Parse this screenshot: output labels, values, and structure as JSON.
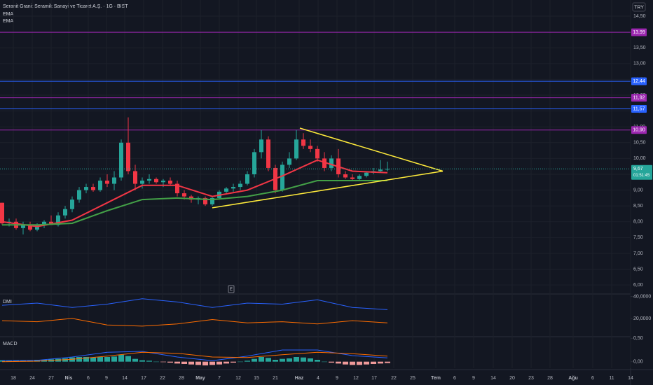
{
  "chart_data": [
    {
      "type": "candlestick",
      "title": "Seranit Granit Seramik Sanayi ve Ticaret A.Ş. · 1G · BIST",
      "currency": "TRY",
      "up_color": "#26a69a",
      "down_color": "#f23645",
      "grid": true,
      "xlim": [
        -0.3,
        89.7
      ],
      "xticks": [
        {
          "value": 1.6,
          "label": "18"
        },
        {
          "value": 4.3,
          "label": "24"
        },
        {
          "value": 7.0,
          "label": "27"
        },
        {
          "value": 9.5,
          "label": "Nis"
        },
        {
          "value": 12.3,
          "label": "6"
        },
        {
          "value": 14.9,
          "label": "9"
        },
        {
          "value": 17.5,
          "label": "14"
        },
        {
          "value": 20.2,
          "label": "17"
        },
        {
          "value": 22.9,
          "label": "22"
        },
        {
          "value": 25.6,
          "label": "28"
        },
        {
          "value": 28.3,
          "label": "May"
        },
        {
          "value": 31.0,
          "label": "7"
        },
        {
          "value": 33.7,
          "label": "12"
        },
        {
          "value": 36.3,
          "label": "15"
        },
        {
          "value": 39.0,
          "label": "21"
        },
        {
          "value": 42.4,
          "label": "Haz"
        },
        {
          "value": 45.1,
          "label": "4"
        },
        {
          "value": 47.8,
          "label": "9"
        },
        {
          "value": 50.5,
          "label": "12"
        },
        {
          "value": 53.1,
          "label": "17"
        },
        {
          "value": 55.9,
          "label": "22"
        },
        {
          "value": 58.6,
          "label": "25"
        },
        {
          "value": 61.9,
          "label": "Tem"
        },
        {
          "value": 64.6,
          "label": "6"
        },
        {
          "value": 67.3,
          "label": "9"
        },
        {
          "value": 70.1,
          "label": "14"
        },
        {
          "value": 72.8,
          "label": "20"
        },
        {
          "value": 75.5,
          "label": "23"
        },
        {
          "value": 78.2,
          "label": "28"
        },
        {
          "value": 81.5,
          "label": "Ağu"
        },
        {
          "value": 84.3,
          "label": "6"
        },
        {
          "value": 87.0,
          "label": "11"
        },
        {
          "value": 89.7,
          "label": "14"
        }
      ],
      "ylim": [
        5.76,
        15.01
      ],
      "yticks": [
        {
          "value": 14.5,
          "label": "14,50"
        },
        {
          "value": 14.0,
          "label": "14,00"
        },
        {
          "value": 13.5,
          "label": "13,50"
        },
        {
          "value": 13.0,
          "label": "13,00"
        },
        {
          "value": 12.5,
          "label": "12,50"
        },
        {
          "value": 12.0,
          "label": "12,00"
        },
        {
          "value": 11.5,
          "label": "11,50"
        },
        {
          "value": 11.0,
          "label": "11,00"
        },
        {
          "value": 10.5,
          "label": "10,50"
        },
        {
          "value": 10.0,
          "label": "10,00"
        },
        {
          "value": 9.5,
          "label": "9,50"
        },
        {
          "value": 9.0,
          "label": "9,00"
        },
        {
          "value": 8.5,
          "label": "8,50"
        },
        {
          "value": 8.0,
          "label": "8,00"
        },
        {
          "value": 7.5,
          "label": "7,50"
        },
        {
          "value": 7.0,
          "label": "7,00"
        },
        {
          "value": 6.5,
          "label": "6,50"
        },
        {
          "value": 6.0,
          "label": "6,00"
        }
      ],
      "candles": [
        [
          8.6,
          8.6,
          7.9,
          7.95
        ],
        [
          7.95,
          8.1,
          7.85,
          8.0
        ],
        [
          8.0,
          8.1,
          7.75,
          7.8
        ],
        [
          7.8,
          8.0,
          7.6,
          7.9
        ],
        [
          7.9,
          8.0,
          7.7,
          7.75
        ],
        [
          7.75,
          7.95,
          7.7,
          7.9
        ],
        [
          7.9,
          8.05,
          7.8,
          8.0
        ],
        [
          8.0,
          8.2,
          7.9,
          7.9
        ],
        [
          7.9,
          8.3,
          7.85,
          8.2
        ],
        [
          8.2,
          8.5,
          8.1,
          8.4
        ],
        [
          8.4,
          8.8,
          8.3,
          8.7
        ],
        [
          8.7,
          9.1,
          8.6,
          9.0
        ],
        [
          9.0,
          9.2,
          8.9,
          9.1
        ],
        [
          9.1,
          9.2,
          8.95,
          9.0
        ],
        [
          9.0,
          9.4,
          8.95,
          9.3
        ],
        [
          9.3,
          9.5,
          9.1,
          9.2
        ],
        [
          9.2,
          9.6,
          9.0,
          9.4
        ],
        [
          9.4,
          10.6,
          9.3,
          10.5
        ],
        [
          10.5,
          11.3,
          9.5,
          9.6
        ],
        [
          9.6,
          9.8,
          9.0,
          9.2
        ],
        [
          9.2,
          9.4,
          9.05,
          9.3
        ],
        [
          9.3,
          9.5,
          9.2,
          9.35
        ],
        [
          9.35,
          9.4,
          9.2,
          9.25
        ],
        [
          9.25,
          9.35,
          9.1,
          9.3
        ],
        [
          9.3,
          9.4,
          9.15,
          9.2
        ],
        [
          9.2,
          9.3,
          8.8,
          8.9
        ],
        [
          8.9,
          9.0,
          8.7,
          8.8
        ],
        [
          8.8,
          8.85,
          8.6,
          8.7
        ],
        [
          8.7,
          8.8,
          8.55,
          8.75
        ],
        [
          8.75,
          8.8,
          8.5,
          8.55
        ],
        [
          8.55,
          8.8,
          8.5,
          8.75
        ],
        [
          8.75,
          9.0,
          8.7,
          8.95
        ],
        [
          8.95,
          9.1,
          8.9,
          9.05
        ],
        [
          9.05,
          9.2,
          8.95,
          9.1
        ],
        [
          9.1,
          9.3,
          9.0,
          9.2
        ],
        [
          9.2,
          9.6,
          9.15,
          9.5
        ],
        [
          9.5,
          10.3,
          9.4,
          10.2
        ],
        [
          10.2,
          10.9,
          10.0,
          10.6
        ],
        [
          10.6,
          10.7,
          9.6,
          9.7
        ],
        [
          9.7,
          9.8,
          8.9,
          9.0
        ],
        [
          9.0,
          9.9,
          8.95,
          9.8
        ],
        [
          9.8,
          10.2,
          9.7,
          10.0
        ],
        [
          10.0,
          10.9,
          9.95,
          10.6
        ],
        [
          10.6,
          10.8,
          10.3,
          10.4
        ],
        [
          10.4,
          10.6,
          10.2,
          10.3
        ],
        [
          10.3,
          10.4,
          9.9,
          10.0
        ],
        [
          10.0,
          10.2,
          9.6,
          9.7
        ],
        [
          9.7,
          10.1,
          9.6,
          10.0
        ],
        [
          10.0,
          10.3,
          9.4,
          9.5
        ],
        [
          9.5,
          9.6,
          9.35,
          9.4
        ],
        [
          9.4,
          9.5,
          9.3,
          9.35
        ],
        [
          9.35,
          9.5,
          9.3,
          9.45
        ],
        [
          9.45,
          9.6,
          9.4,
          9.55
        ],
        [
          9.55,
          9.7,
          9.5,
          9.6
        ],
        [
          9.6,
          9.95,
          9.55,
          9.65
        ],
        [
          9.65,
          9.9,
          9.6,
          9.67
        ]
      ],
      "series": [
        {
          "name": "EMA",
          "color": "#f23645",
          "x": [
            0,
            5,
            10,
            15,
            20,
            25,
            30,
            35,
            40,
            45,
            50,
            55
          ],
          "values": [
            8.0,
            7.85,
            8.05,
            8.6,
            9.15,
            9.15,
            8.8,
            9.0,
            9.45,
            9.95,
            9.6,
            9.55
          ]
        },
        {
          "name": "EMA",
          "color": "#43a047",
          "x": [
            0,
            5,
            10,
            15,
            20,
            25,
            30,
            35,
            40,
            45,
            50,
            55
          ],
          "values": [
            7.9,
            7.9,
            7.95,
            8.35,
            8.7,
            8.75,
            8.7,
            8.8,
            9.0,
            9.3,
            9.3,
            9.3
          ]
        }
      ],
      "levels": [
        {
          "value": 13.99,
          "label": "13,99",
          "color": "#9c27b0"
        },
        {
          "value": 12.44,
          "label": "12,44",
          "color": "#2962ff"
        },
        {
          "value": 11.92,
          "label": "11,92",
          "color": "#9c27b0"
        },
        {
          "value": 11.57,
          "label": "11,57",
          "color": "#2962ff"
        },
        {
          "value": 10.9,
          "label": "10,90",
          "color": "#9c27b0"
        }
      ],
      "trendlines": [
        {
          "x": [
            30,
            62.9
          ],
          "y": [
            8.44,
            9.6
          ],
          "color": "#ffeb3b"
        },
        {
          "x": [
            42.5,
            62.9
          ],
          "y": [
            10.96,
            9.6
          ],
          "color": "#ffeb3b"
        }
      ],
      "events": [
        {
          "x": 32.7,
          "label": "E"
        }
      ],
      "last": {
        "value": 9.67,
        "label": "9,67",
        "countdown": "01:51:45",
        "color": "#26a69a"
      }
    },
    {
      "type": "line",
      "title": "DMI",
      "ylim": [
        4,
        41
      ],
      "yticks": [
        {
          "value": 40,
          "label": "40,0000"
        },
        {
          "value": 20,
          "label": "20,0000"
        }
      ],
      "series": [
        {
          "color": "#2962ff",
          "x": [
            0,
            5,
            10,
            15,
            20,
            25,
            30,
            35,
            40,
            45,
            50,
            55
          ],
          "values": [
            32,
            34,
            30,
            33,
            38,
            35,
            30,
            34,
            33,
            37,
            30,
            28
          ]
        },
        {
          "color": "#ff6d00",
          "x": [
            0,
            5,
            10,
            15,
            20,
            25,
            30,
            35,
            40,
            45,
            50,
            55
          ],
          "values": [
            18,
            17,
            20,
            14,
            13,
            15,
            19,
            16,
            17,
            15,
            18,
            16
          ]
        }
      ]
    },
    {
      "type": "bar",
      "title": "MACD",
      "ylim": [
        -0.14,
        0.52
      ],
      "yticks": [
        {
          "value": 0.5,
          "label": "0,50"
        },
        {
          "value": 0,
          "label": "0,00"
        }
      ],
      "pos_color": "#26a69a",
      "neg_color": "#ef9a9a",
      "values": [
        0.03,
        0.02,
        0.02,
        0.03,
        0.03,
        0.04,
        0.04,
        0.05,
        0.06,
        0.07,
        0.09,
        0.1,
        0.1,
        0.09,
        0.1,
        0.1,
        0.11,
        0.15,
        0.12,
        0.06,
        0.03,
        0.02,
        0.0,
        -0.01,
        -0.02,
        -0.04,
        -0.05,
        -0.06,
        -0.07,
        -0.08,
        -0.07,
        -0.06,
        -0.04,
        -0.02,
        0.0,
        0.02,
        0.06,
        0.1,
        0.08,
        0.04,
        0.06,
        0.07,
        0.1,
        0.09,
        0.07,
        0.04,
        0.0,
        -0.02,
        -0.04,
        -0.06,
        -0.07,
        -0.07,
        -0.06,
        -0.05,
        -0.04,
        -0.03
      ],
      "series": [
        {
          "color": "#2962ff",
          "x": [
            0,
            5,
            10,
            15,
            20,
            25,
            30,
            35,
            40,
            45,
            50,
            55
          ],
          "values": [
            0.02,
            0.03,
            0.1,
            0.2,
            0.22,
            0.1,
            0.02,
            0.12,
            0.25,
            0.25,
            0.13,
            0.08
          ]
        },
        {
          "color": "#ff6d00",
          "x": [
            0,
            5,
            10,
            15,
            20,
            25,
            30,
            35,
            40,
            45,
            50,
            55
          ],
          "values": [
            0.0,
            0.01,
            0.05,
            0.12,
            0.2,
            0.18,
            0.1,
            0.09,
            0.15,
            0.2,
            0.17,
            0.12
          ]
        }
      ]
    }
  ]
}
